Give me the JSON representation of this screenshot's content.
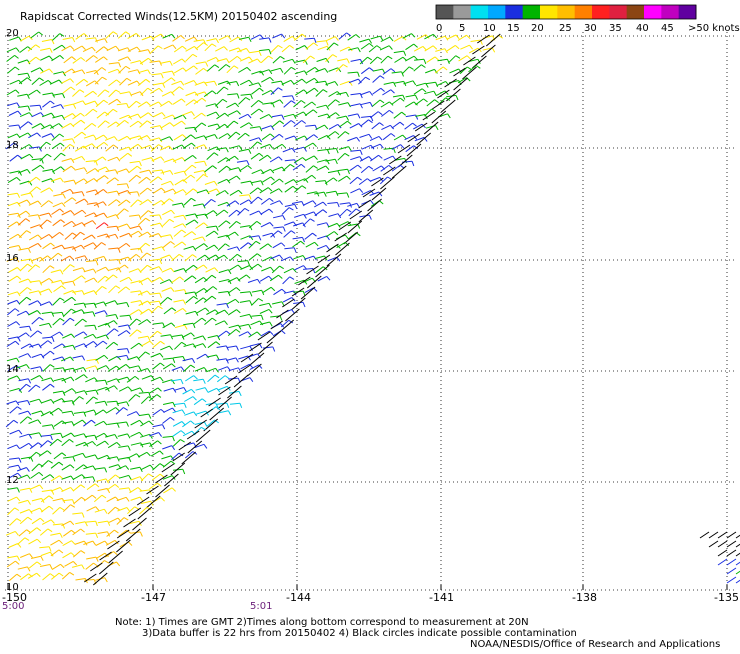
{
  "title": "Rapidscat Corrected Winds(12.5KM) 20150402 ascending",
  "colorbar": {
    "labels": [
      "0",
      "5",
      "10",
      "15",
      "20",
      "25",
      "30",
      "35",
      "40",
      "45",
      ">50 knots"
    ],
    "colors": [
      "#555555",
      "#9a9a9a",
      "#00e0f0",
      "#00a8ff",
      "#1a2ee0",
      "#00b400",
      "#ffe600",
      "#ffbe00",
      "#ff8000",
      "#ff2020",
      "#e02040",
      "#8b4513",
      "#ff00ff",
      "#c000c0",
      "#6000a0"
    ]
  },
  "x_ticks": [
    "-150",
    "-147",
    "-144",
    "-141",
    "-138",
    "-135"
  ],
  "y_ticks": [
    "20",
    "18",
    "16",
    "14",
    "12",
    "10"
  ],
  "time_labels": [
    "5:00",
    "5:01"
  ],
  "notes": [
    "Note: 1) Times are GMT 2)Times along bottom correspond to measurement at 20N",
    "3)Data buffer is 22 hrs from 20150402 4) Black circles indicate possible contamination",
    "NOAA/NESDIS/Office of Research and Applications"
  ],
  "map": {
    "lon_range": [
      -150,
      -135
    ],
    "lat_range": [
      10,
      20
    ]
  }
}
